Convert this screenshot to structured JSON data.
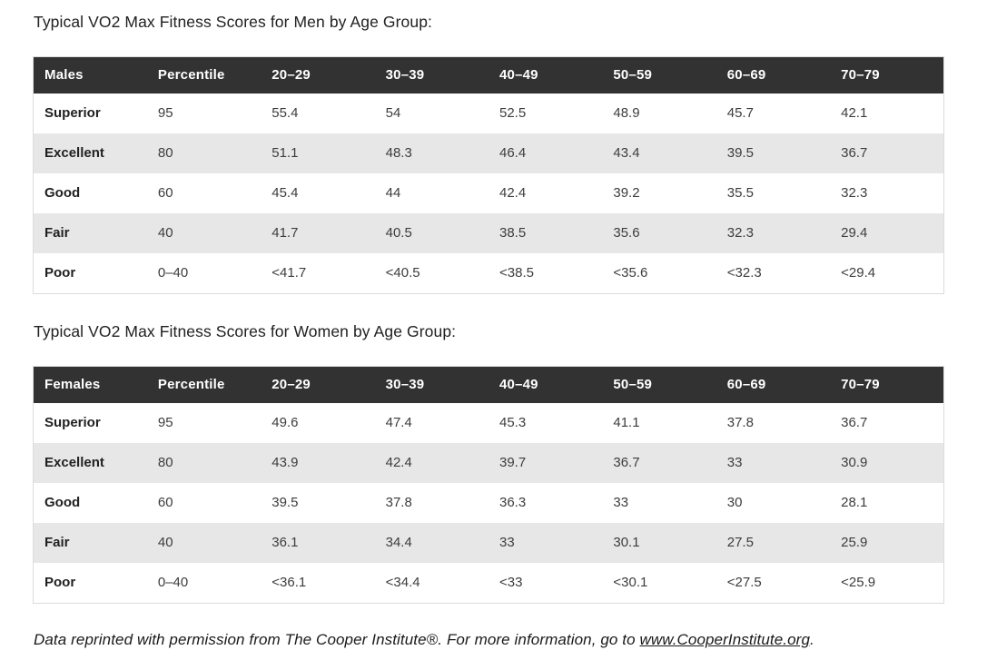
{
  "colors": {
    "table_header_bg": "#323232",
    "table_header_text": "#ffffff",
    "row_alt_bg": "#e7e7e7",
    "row_bg": "#ffffff",
    "table_border": "#dcdcdc",
    "title_text": "#212121",
    "cell_text": "#3d3d3d"
  },
  "sections": [
    {
      "title": "Typical VO2 Max Fitness Scores for Men by Age Group:",
      "table": {
        "columns": [
          "Males",
          "Percentile",
          "20–29",
          "30–39",
          "40–49",
          "50–59",
          "60–69",
          "70–79"
        ],
        "rows": [
          [
            "Superior",
            "95",
            "55.4",
            "54",
            "52.5",
            "48.9",
            "45.7",
            "42.1"
          ],
          [
            "Excellent",
            "80",
            "51.1",
            "48.3",
            "46.4",
            "43.4",
            "39.5",
            "36.7"
          ],
          [
            "Good",
            "60",
            "45.4",
            "44",
            "42.4",
            "39.2",
            "35.5",
            "32.3"
          ],
          [
            "Fair",
            "40",
            "41.7",
            "40.5",
            "38.5",
            "35.6",
            "32.3",
            "29.4"
          ],
          [
            "Poor",
            "0–40",
            "<41.7",
            "<40.5",
            "<38.5",
            "<35.6",
            "<32.3",
            "<29.4"
          ]
        ]
      }
    },
    {
      "title": "Typical VO2 Max Fitness Scores for Women by Age Group:",
      "table": {
        "columns": [
          "Females",
          "Percentile",
          "20–29",
          "30–39",
          "40–49",
          "50–59",
          "60–69",
          "70–79"
        ],
        "rows": [
          [
            "Superior",
            "95",
            "49.6",
            "47.4",
            "45.3",
            "41.1",
            "37.8",
            "36.7"
          ],
          [
            "Excellent",
            "80",
            "43.9",
            "42.4",
            "39.7",
            "36.7",
            "33",
            "30.9"
          ],
          [
            "Good",
            "60",
            "39.5",
            "37.8",
            "36.3",
            "33",
            "30",
            "28.1"
          ],
          [
            "Fair",
            "40",
            "36.1",
            "34.4",
            "33",
            "30.1",
            "27.5",
            "25.9"
          ],
          [
            "Poor",
            "0–40",
            "<36.1",
            "<34.4",
            "<33",
            "<30.1",
            "<27.5",
            "<25.9"
          ]
        ]
      }
    }
  ],
  "footer": {
    "prefix": "Data reprinted with permission from The Cooper Institute®. For more information, go to ",
    "link_text": "www.CooperInstitute.org",
    "suffix": "."
  }
}
